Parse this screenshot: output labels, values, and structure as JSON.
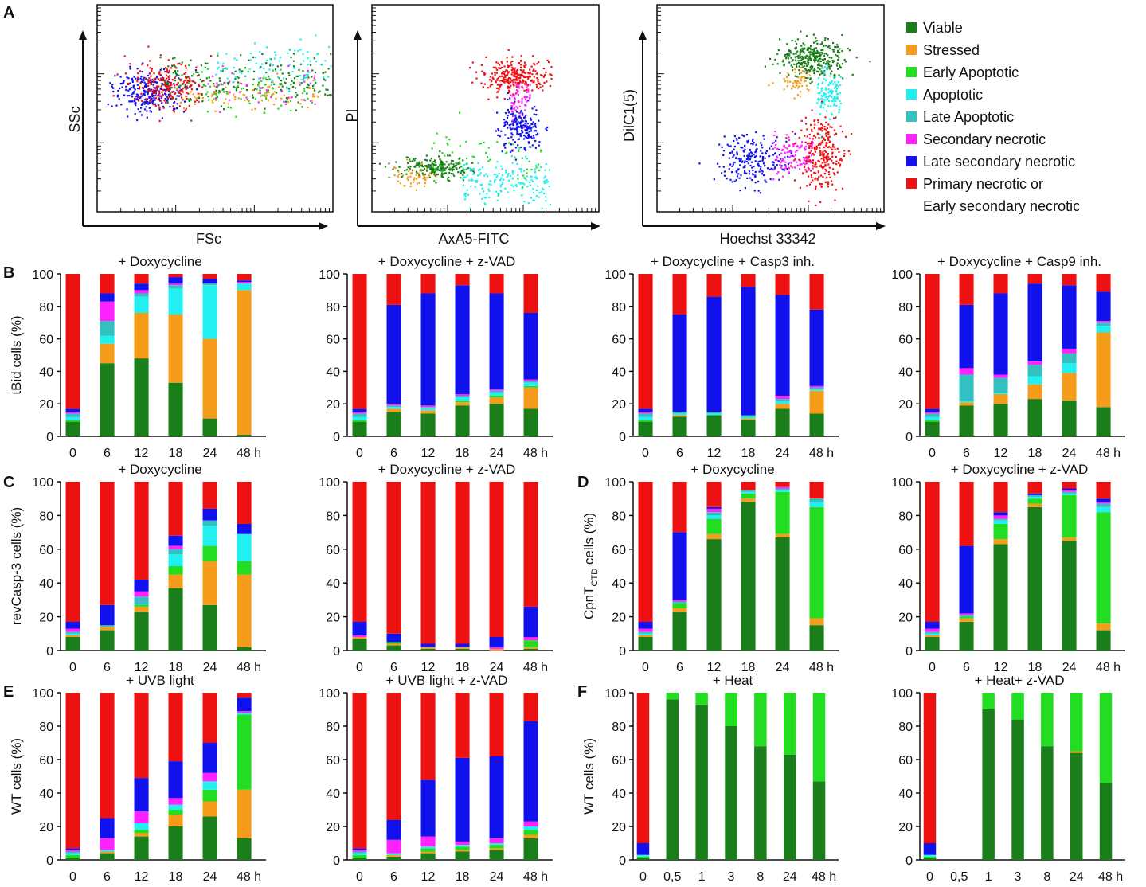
{
  "figure": {
    "panel_letters": [
      "A",
      "B",
      "C",
      "D",
      "E",
      "F"
    ]
  },
  "legend": [
    {
      "label": "Viable",
      "color": "#1a7f1a"
    },
    {
      "label": "Stressed",
      "color": "#f59c1a"
    },
    {
      "label": "Early Apoptotic",
      "color": "#22dd22"
    },
    {
      "label": "Apoptotic",
      "color": "#22f0f0"
    },
    {
      "label": "Late Apoptotic",
      "color": "#33c0c0"
    },
    {
      "label": "Secondary necrotic",
      "color": "#ff22ff"
    },
    {
      "label": "Late secondary necrotic",
      "color": "#1111ee"
    },
    {
      "label": "Primary necrotic or",
      "label2": "Early secondary necrotic",
      "color": "#ee1111"
    }
  ],
  "scatter_panels": [
    {
      "xlabel": "FSc",
      "ylabel": "SSc"
    },
    {
      "xlabel": "AxA5-FITC",
      "ylabel": "PI"
    },
    {
      "xlabel": "Hoechst 33342",
      "ylabel": "DilC1(5)"
    }
  ],
  "chart_data": [
    {
      "type": "bar",
      "id": "B1",
      "title": "+ Doxycycline",
      "ylabel": "tBid cells (%)",
      "ylim": [
        0,
        100
      ],
      "yticks": [
        "0",
        "20",
        "40",
        "60",
        "80",
        "100"
      ],
      "categories": [
        "0",
        "6",
        "12",
        "18",
        "24",
        "48 h"
      ],
      "stacks": [
        [
          9,
          0,
          1,
          2,
          2,
          1,
          2,
          83
        ],
        [
          45,
          12,
          0,
          5,
          9,
          12,
          5,
          12
        ],
        [
          48,
          28,
          0,
          10,
          2,
          2,
          4,
          6
        ],
        [
          33,
          42,
          0,
          16,
          2,
          1,
          4,
          2
        ],
        [
          11,
          49,
          0,
          33,
          1,
          0,
          3,
          3
        ],
        [
          1,
          89,
          0,
          4,
          0,
          1,
          1,
          4
        ]
      ]
    },
    {
      "type": "bar",
      "id": "B2",
      "title": "+ Doxycycline + z-VAD",
      "ylabel": "",
      "ylim": [
        0,
        100
      ],
      "yticks": [
        "0",
        "20",
        "40",
        "60",
        "80",
        "100"
      ],
      "categories": [
        "0",
        "6",
        "12",
        "18",
        "24",
        "48 h"
      ],
      "stacks": [
        [
          9,
          0,
          1,
          2,
          2,
          1,
          2,
          83
        ],
        [
          15,
          2,
          0,
          1,
          1,
          1,
          61,
          19
        ],
        [
          14,
          2,
          0,
          1,
          1,
          1,
          69,
          12
        ],
        [
          19,
          2,
          1,
          2,
          1,
          1,
          67,
          7
        ],
        [
          20,
          4,
          1,
          2,
          1,
          1,
          59,
          12
        ],
        [
          17,
          13,
          1,
          2,
          1,
          1,
          41,
          24
        ]
      ]
    },
    {
      "type": "bar",
      "id": "B3",
      "title": "+ Doxycycline + Casp3 inh.",
      "ylabel": "",
      "ylim": [
        0,
        100
      ],
      "yticks": [
        "0",
        "20",
        "40",
        "60",
        "80",
        "100"
      ],
      "categories": [
        "0",
        "6",
        "12",
        "18",
        "24",
        "48 h"
      ],
      "stacks": [
        [
          9,
          0,
          1,
          2,
          2,
          1,
          2,
          83
        ],
        [
          12,
          1,
          0,
          1,
          1,
          0,
          60,
          25
        ],
        [
          13,
          0,
          0,
          1,
          1,
          0,
          71,
          14
        ],
        [
          10,
          1,
          0,
          1,
          1,
          0,
          79,
          8
        ],
        [
          17,
          3,
          0,
          2,
          1,
          2,
          62,
          13
        ],
        [
          14,
          14,
          0,
          1,
          1,
          1,
          47,
          22
        ]
      ]
    },
    {
      "type": "bar",
      "id": "B4",
      "title": "+ Doxycycline + Casp9 inh.",
      "ylabel": "",
      "ylim": [
        0,
        100
      ],
      "yticks": [
        "0",
        "20",
        "40",
        "60",
        "80",
        "100"
      ],
      "categories": [
        "0",
        "6",
        "12",
        "18",
        "24",
        "48 h"
      ],
      "stacks": [
        [
          9,
          0,
          1,
          2,
          2,
          1,
          2,
          83
        ],
        [
          19,
          2,
          0,
          1,
          16,
          4,
          39,
          19
        ],
        [
          20,
          6,
          0,
          1,
          9,
          2,
          50,
          12
        ],
        [
          23,
          9,
          0,
          5,
          7,
          2,
          48,
          6
        ],
        [
          22,
          17,
          0,
          6,
          6,
          3,
          39,
          7
        ],
        [
          18,
          46,
          0,
          4,
          2,
          1,
          18,
          11
        ]
      ]
    },
    {
      "type": "bar",
      "id": "C1",
      "title": "+ Doxycycline",
      "ylabel": "revCasp-3 cells (%)",
      "ylim": [
        0,
        100
      ],
      "yticks": [
        "0",
        "20",
        "40",
        "60",
        "80",
        "100"
      ],
      "categories": [
        "0",
        "6",
        "12",
        "18",
        "24",
        "48 h"
      ],
      "stacks": [
        [
          8,
          1,
          0,
          1,
          1,
          2,
          4,
          83
        ],
        [
          12,
          2,
          0,
          0,
          1,
          0,
          12,
          73
        ],
        [
          23,
          3,
          1,
          0,
          5,
          3,
          7,
          58
        ],
        [
          37,
          8,
          5,
          7,
          3,
          2,
          6,
          32
        ],
        [
          27,
          26,
          9,
          12,
          3,
          0,
          7,
          16
        ],
        [
          2,
          43,
          8,
          16,
          0,
          0,
          6,
          25
        ]
      ]
    },
    {
      "type": "bar",
      "id": "C2",
      "title": "+ Doxycycline + z-VAD",
      "ylabel": "",
      "ylim": [
        0,
        100
      ],
      "yticks": [
        "0",
        "20",
        "40",
        "60",
        "80",
        "100"
      ],
      "categories": [
        "0",
        "6",
        "12",
        "18",
        "24",
        "48 h"
      ],
      "stacks": [
        [
          7,
          1,
          0,
          0,
          0,
          1,
          8,
          83
        ],
        [
          3,
          1,
          1,
          0,
          0,
          0,
          5,
          90
        ],
        [
          1,
          1,
          0,
          0,
          0,
          0,
          2,
          96
        ],
        [
          1,
          1,
          0,
          0,
          0,
          0,
          2,
          96
        ],
        [
          0,
          1,
          0,
          0,
          0,
          1,
          6,
          92
        ],
        [
          1,
          1,
          4,
          0,
          0,
          2,
          18,
          74
        ]
      ]
    },
    {
      "type": "bar",
      "id": "D1",
      "title": "+ Doxycycline",
      "ylabel": "CpnT",
      "ylabel_sub": "CTD",
      "ylabel_tail": " cells (%)",
      "ylim": [
        0,
        100
      ],
      "yticks": [
        "0",
        "20",
        "40",
        "60",
        "80",
        "100"
      ],
      "categories": [
        "0",
        "6",
        "12",
        "18",
        "24",
        "48 h"
      ],
      "stacks": [
        [
          8,
          1,
          0,
          1,
          1,
          2,
          4,
          83
        ],
        [
          23,
          2,
          3,
          0,
          1,
          1,
          40,
          30
        ],
        [
          66,
          3,
          9,
          2,
          2,
          2,
          1,
          15
        ],
        [
          88,
          2,
          3,
          1,
          1,
          0,
          0,
          5
        ],
        [
          67,
          2,
          25,
          1,
          1,
          1,
          0,
          3
        ],
        [
          15,
          4,
          66,
          3,
          2,
          0,
          0,
          10
        ]
      ]
    },
    {
      "type": "bar",
      "id": "D2",
      "title": "+ Doxycycline + z-VAD",
      "ylabel": "",
      "ylim": [
        0,
        100
      ],
      "yticks": [
        "0",
        "20",
        "40",
        "60",
        "80",
        "100"
      ],
      "categories": [
        "0",
        "6",
        "12",
        "18",
        "24",
        "48 h"
      ],
      "stacks": [
        [
          8,
          1,
          0,
          1,
          1,
          2,
          4,
          83
        ],
        [
          17,
          2,
          1,
          0,
          1,
          1,
          40,
          38
        ],
        [
          63,
          3,
          9,
          2,
          1,
          2,
          2,
          18
        ],
        [
          85,
          2,
          3,
          1,
          1,
          0,
          1,
          7
        ],
        [
          65,
          2,
          25,
          1,
          1,
          1,
          1,
          4
        ],
        [
          12,
          4,
          66,
          3,
          2,
          1,
          2,
          10
        ]
      ]
    },
    {
      "type": "bar",
      "id": "E1",
      "title": "+ UVB light",
      "ylabel": "WT cells (%)",
      "ylim": [
        0,
        100
      ],
      "yticks": [
        "0",
        "20",
        "40",
        "60",
        "80",
        "100"
      ],
      "categories": [
        "0",
        "6",
        "12",
        "18",
        "24",
        "48 h"
      ],
      "stacks": [
        [
          1,
          0,
          2,
          1,
          1,
          1,
          1,
          93
        ],
        [
          4,
          1,
          0,
          1,
          0,
          7,
          12,
          75
        ],
        [
          14,
          2,
          2,
          4,
          0,
          7,
          20,
          51
        ],
        [
          20,
          7,
          3,
          3,
          0,
          4,
          22,
          41
        ],
        [
          26,
          9,
          7,
          5,
          0,
          5,
          18,
          30
        ],
        [
          13,
          29,
          45,
          1,
          0,
          1,
          8,
          3
        ]
      ]
    },
    {
      "type": "bar",
      "id": "E2",
      "title": "+ UVB light + z-VAD",
      "ylabel": "",
      "ylim": [
        0,
        100
      ],
      "yticks": [
        "0",
        "20",
        "40",
        "60",
        "80",
        "100"
      ],
      "categories": [
        "0",
        "6",
        "12",
        "18",
        "24",
        "48 h"
      ],
      "stacks": [
        [
          1,
          0,
          2,
          1,
          1,
          1,
          1,
          93
        ],
        [
          2,
          1,
          0,
          1,
          0,
          8,
          12,
          76
        ],
        [
          4,
          1,
          2,
          1,
          0,
          6,
          34,
          52
        ],
        [
          5,
          1,
          2,
          1,
          0,
          2,
          50,
          39
        ],
        [
          6,
          1,
          2,
          1,
          0,
          3,
          49,
          38
        ],
        [
          13,
          2,
          3,
          2,
          0,
          3,
          60,
          17
        ]
      ]
    },
    {
      "type": "bar",
      "id": "F1",
      "title": "+ Heat",
      "ylabel": "WT cells (%)",
      "ylim": [
        0,
        100
      ],
      "yticks": [
        "0",
        "20",
        "40",
        "60",
        "80",
        "100"
      ],
      "categories": [
        "0",
        "0,5",
        "1",
        "3",
        "8",
        "24",
        "48 h"
      ],
      "stacks": [
        [
          1,
          0,
          1,
          1,
          0,
          0,
          7,
          90
        ],
        [
          96,
          0,
          4,
          0,
          0,
          0,
          0,
          0
        ],
        [
          93,
          0,
          7,
          0,
          0,
          0,
          0,
          0
        ],
        [
          80,
          0,
          20,
          0,
          0,
          0,
          0,
          0
        ],
        [
          68,
          0,
          32,
          0,
          0,
          0,
          0,
          0
        ],
        [
          63,
          0,
          37,
          0,
          0,
          0,
          0,
          0
        ],
        [
          47,
          0,
          53,
          0,
          0,
          0,
          0,
          0
        ]
      ]
    },
    {
      "type": "bar",
      "id": "F2",
      "title": "+ Heat+ z-VAD",
      "ylabel": "",
      "ylim": [
        0,
        100
      ],
      "yticks": [
        "0",
        "20",
        "40",
        "60",
        "80",
        "100"
      ],
      "categories": [
        "0",
        "0,5",
        "1",
        "3",
        "8",
        "24",
        "48 h"
      ],
      "stacks": [
        [
          1,
          0,
          1,
          1,
          0,
          0,
          7,
          90
        ],
        [
          0,
          0,
          0,
          0,
          0,
          0,
          0,
          0
        ],
        [
          90,
          0,
          10,
          0,
          0,
          0,
          0,
          0
        ],
        [
          84,
          0,
          16,
          0,
          0,
          0,
          0,
          0
        ],
        [
          68,
          0,
          32,
          0,
          0,
          0,
          0,
          0
        ],
        [
          64,
          1,
          35,
          0,
          0,
          0,
          0,
          0
        ],
        [
          46,
          0,
          54,
          0,
          0,
          0,
          0,
          0
        ]
      ]
    }
  ]
}
